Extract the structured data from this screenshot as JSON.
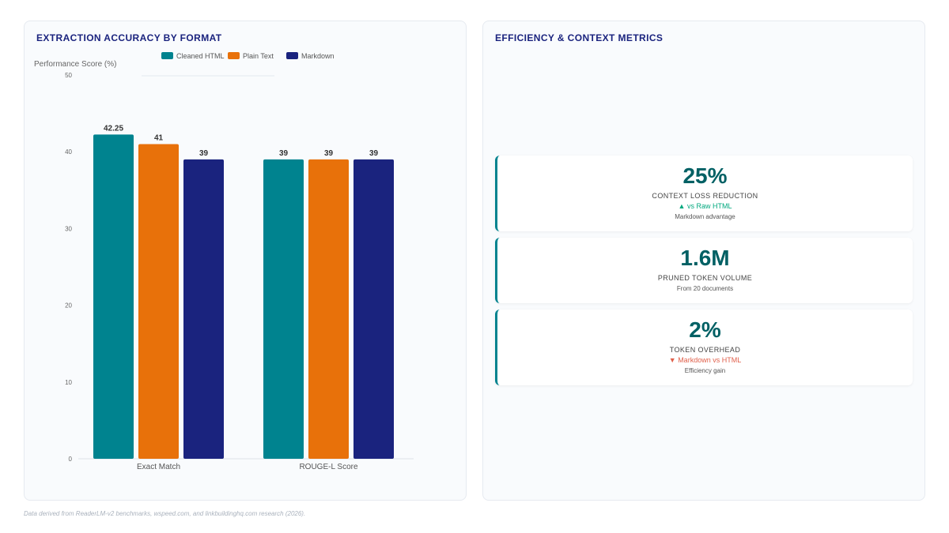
{
  "left_panel": {
    "title": "EXTRACTION ACCURACY BY FORMAT"
  },
  "right_panel": {
    "title": "EFFICIENCY & CONTEXT METRICS"
  },
  "chart_data": {
    "type": "bar",
    "categories": [
      "Exact Match",
      "ROUGE-L Score"
    ],
    "series": [
      {
        "name": "Cleaned HTML",
        "values": [
          42.25,
          39
        ],
        "color": "#00838f"
      },
      {
        "name": "Plain Text",
        "values": [
          41,
          39
        ],
        "color": "#e8710a"
      },
      {
        "name": "Markdown",
        "values": [
          39,
          39
        ],
        "color": "#1a237e"
      }
    ],
    "title": "",
    "xlabel": "",
    "ylabel": "Performance Score (%)",
    "ylim": [
      0,
      50
    ],
    "yticks": [
      0,
      10,
      20,
      30,
      40,
      50
    ],
    "legend": "top",
    "grid": false
  },
  "metrics": [
    {
      "value": "25%",
      "label": "CONTEXT LOSS REDUCTION",
      "delta": "▲ vs Raw HTML",
      "delta_dir": "up",
      "note": "Markdown advantage"
    },
    {
      "value": "1.6M",
      "label": "PRUNED TOKEN VOLUME",
      "delta": "",
      "delta_dir": "",
      "note": "From 20 documents"
    },
    {
      "value": "2%",
      "label": "TOKEN OVERHEAD",
      "delta": "▼ Markdown vs HTML",
      "delta_dir": "down",
      "note": "Efficiency gain"
    }
  ],
  "footer": "Data derived from ReaderLM-v2 benchmarks, wspeed.com, and linkbuildinghq.com research (2026)."
}
